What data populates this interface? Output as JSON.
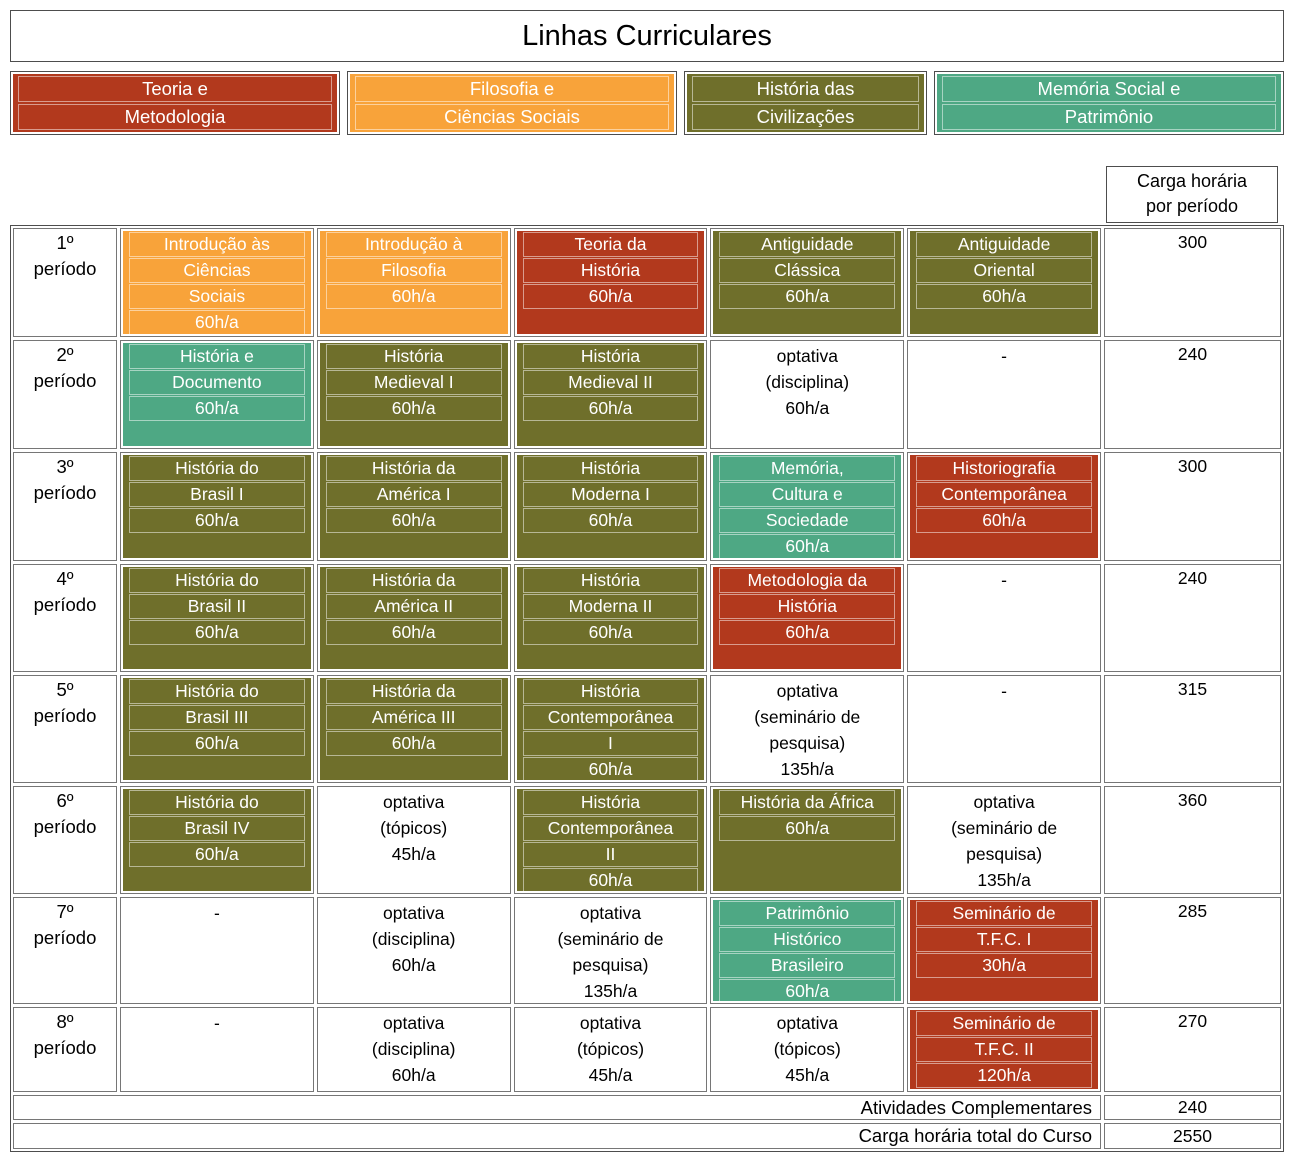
{
  "title": "Linhas Curriculares",
  "legend": [
    {
      "label_lines": [
        "Teoria e",
        "Metodologia"
      ],
      "color": "#b2391d"
    },
    {
      "label_lines": [
        "Filosofia e",
        "Ciências Sociais"
      ],
      "color": "#f8a33a"
    },
    {
      "label_lines": [
        "História das",
        "Civilizações"
      ],
      "color": "#6f6f2b"
    },
    {
      "label_lines": [
        "Memória Social e",
        "Patrimônio"
      ],
      "color": "#4ea884"
    }
  ],
  "carga_header_lines": [
    "Carga horária",
    "por período"
  ],
  "colors": {
    "red": "#b2391d",
    "orange": "#f8a33a",
    "olive": "#6f6f2b",
    "teal": "#4ea884",
    "plain": "#ffffff"
  },
  "rows": [
    {
      "period_lines": [
        "1º",
        "período"
      ],
      "cells": [
        {
          "lines": [
            "Introdução às",
            "Ciências",
            "Sociais",
            "60h/a"
          ],
          "color": "orange"
        },
        {
          "lines": [
            "Introdução à",
            "Filosofia",
            "60h/a"
          ],
          "color": "orange"
        },
        {
          "lines": [
            "Teoria da",
            "História",
            "60h/a"
          ],
          "color": "red"
        },
        {
          "lines": [
            "Antiguidade",
            "Clássica",
            "60h/a"
          ],
          "color": "olive"
        },
        {
          "lines": [
            "Antiguidade",
            "Oriental",
            "60h/a"
          ],
          "color": "olive"
        }
      ],
      "carga": "300"
    },
    {
      "period_lines": [
        "2º",
        "período"
      ],
      "cells": [
        {
          "lines": [
            "História e",
            "Documento",
            "60h/a"
          ],
          "color": "teal"
        },
        {
          "lines": [
            "História",
            "Medieval I",
            "60h/a"
          ],
          "color": "olive"
        },
        {
          "lines": [
            "História",
            "Medieval II",
            "60h/a"
          ],
          "color": "olive"
        },
        {
          "lines": [
            "optativa",
            "(disciplina)",
            "60h/a"
          ],
          "color": "plain"
        },
        {
          "lines": [
            "-"
          ],
          "color": "plain"
        }
      ],
      "carga": "240"
    },
    {
      "period_lines": [
        "3º",
        "período"
      ],
      "cells": [
        {
          "lines": [
            "História do",
            "Brasil I",
            "60h/a"
          ],
          "color": "olive"
        },
        {
          "lines": [
            "História da",
            "América I",
            "60h/a"
          ],
          "color": "olive"
        },
        {
          "lines": [
            "História",
            "Moderna I",
            "60h/a"
          ],
          "color": "olive"
        },
        {
          "lines": [
            "Memória,",
            "Cultura e",
            "Sociedade",
            "60h/a"
          ],
          "color": "teal"
        },
        {
          "lines": [
            "Historiografia",
            "Contemporânea",
            "60h/a"
          ],
          "color": "red"
        }
      ],
      "carga": "300"
    },
    {
      "period_lines": [
        "4º",
        "período"
      ],
      "cells": [
        {
          "lines": [
            "História do",
            "Brasil II",
            "60h/a"
          ],
          "color": "olive"
        },
        {
          "lines": [
            "História da",
            "América II",
            "60h/a"
          ],
          "color": "olive"
        },
        {
          "lines": [
            "História",
            "Moderna II",
            "60h/a"
          ],
          "color": "olive"
        },
        {
          "lines": [
            "Metodologia da",
            "História",
            "60h/a"
          ],
          "color": "red"
        },
        {
          "lines": [
            "-"
          ],
          "color": "plain"
        }
      ],
      "carga": "240"
    },
    {
      "period_lines": [
        "5º",
        "período"
      ],
      "cells": [
        {
          "lines": [
            "História do",
            "Brasil III",
            "60h/a"
          ],
          "color": "olive"
        },
        {
          "lines": [
            "História da",
            "América III",
            "60h/a"
          ],
          "color": "olive"
        },
        {
          "lines": [
            "História",
            "Contemporânea",
            "I",
            "60h/a"
          ],
          "color": "olive"
        },
        {
          "lines": [
            "optativa",
            "(seminário de",
            "pesquisa)",
            "135h/a"
          ],
          "color": "plain"
        },
        {
          "lines": [
            "-"
          ],
          "color": "plain"
        }
      ],
      "carga": "315"
    },
    {
      "period_lines": [
        "6º",
        "período"
      ],
      "cells": [
        {
          "lines": [
            "História do",
            "Brasil IV",
            "60h/a"
          ],
          "color": "olive"
        },
        {
          "lines": [
            "optativa",
            "(tópicos)",
            "45h/a"
          ],
          "color": "plain"
        },
        {
          "lines": [
            "História",
            "Contemporânea",
            "II",
            "60h/a"
          ],
          "color": "olive"
        },
        {
          "lines": [
            "História da África",
            "60h/a"
          ],
          "color": "olive"
        },
        {
          "lines": [
            "optativa",
            "(seminário de",
            "pesquisa)",
            "135h/a"
          ],
          "color": "plain"
        }
      ],
      "carga": "360"
    },
    {
      "period_lines": [
        "7º",
        "período"
      ],
      "cells": [
        {
          "lines": [
            "-"
          ],
          "color": "plain"
        },
        {
          "lines": [
            "optativa",
            "(disciplina)",
            "60h/a"
          ],
          "color": "plain"
        },
        {
          "lines": [
            "optativa",
            "(seminário de",
            "pesquisa)",
            "135h/a"
          ],
          "color": "plain"
        },
        {
          "lines": [
            "Patrimônio",
            "Histórico",
            "Brasileiro",
            "60h/a"
          ],
          "color": "teal"
        },
        {
          "lines": [
            "Seminário de",
            "T.F.C. I",
            "30h/a"
          ],
          "color": "red"
        }
      ],
      "carga": "285"
    },
    {
      "period_lines": [
        "8º",
        "período"
      ],
      "cells": [
        {
          "lines": [
            "-"
          ],
          "color": "plain"
        },
        {
          "lines": [
            "optativa",
            "(disciplina)",
            "60h/a"
          ],
          "color": "plain"
        },
        {
          "lines": [
            "optativa",
            "(tópicos)",
            "45h/a"
          ],
          "color": "plain"
        },
        {
          "lines": [
            "optativa",
            "(tópicos)",
            "45h/a"
          ],
          "color": "plain"
        },
        {
          "lines": [
            "Seminário de",
            "T.F.C. II",
            "120h/a"
          ],
          "color": "red"
        }
      ],
      "carga": "270"
    }
  ],
  "footer": [
    {
      "label": "Atividades Complementares",
      "value": "240"
    },
    {
      "label": "Carga horária total do Curso",
      "value": "2550"
    }
  ]
}
